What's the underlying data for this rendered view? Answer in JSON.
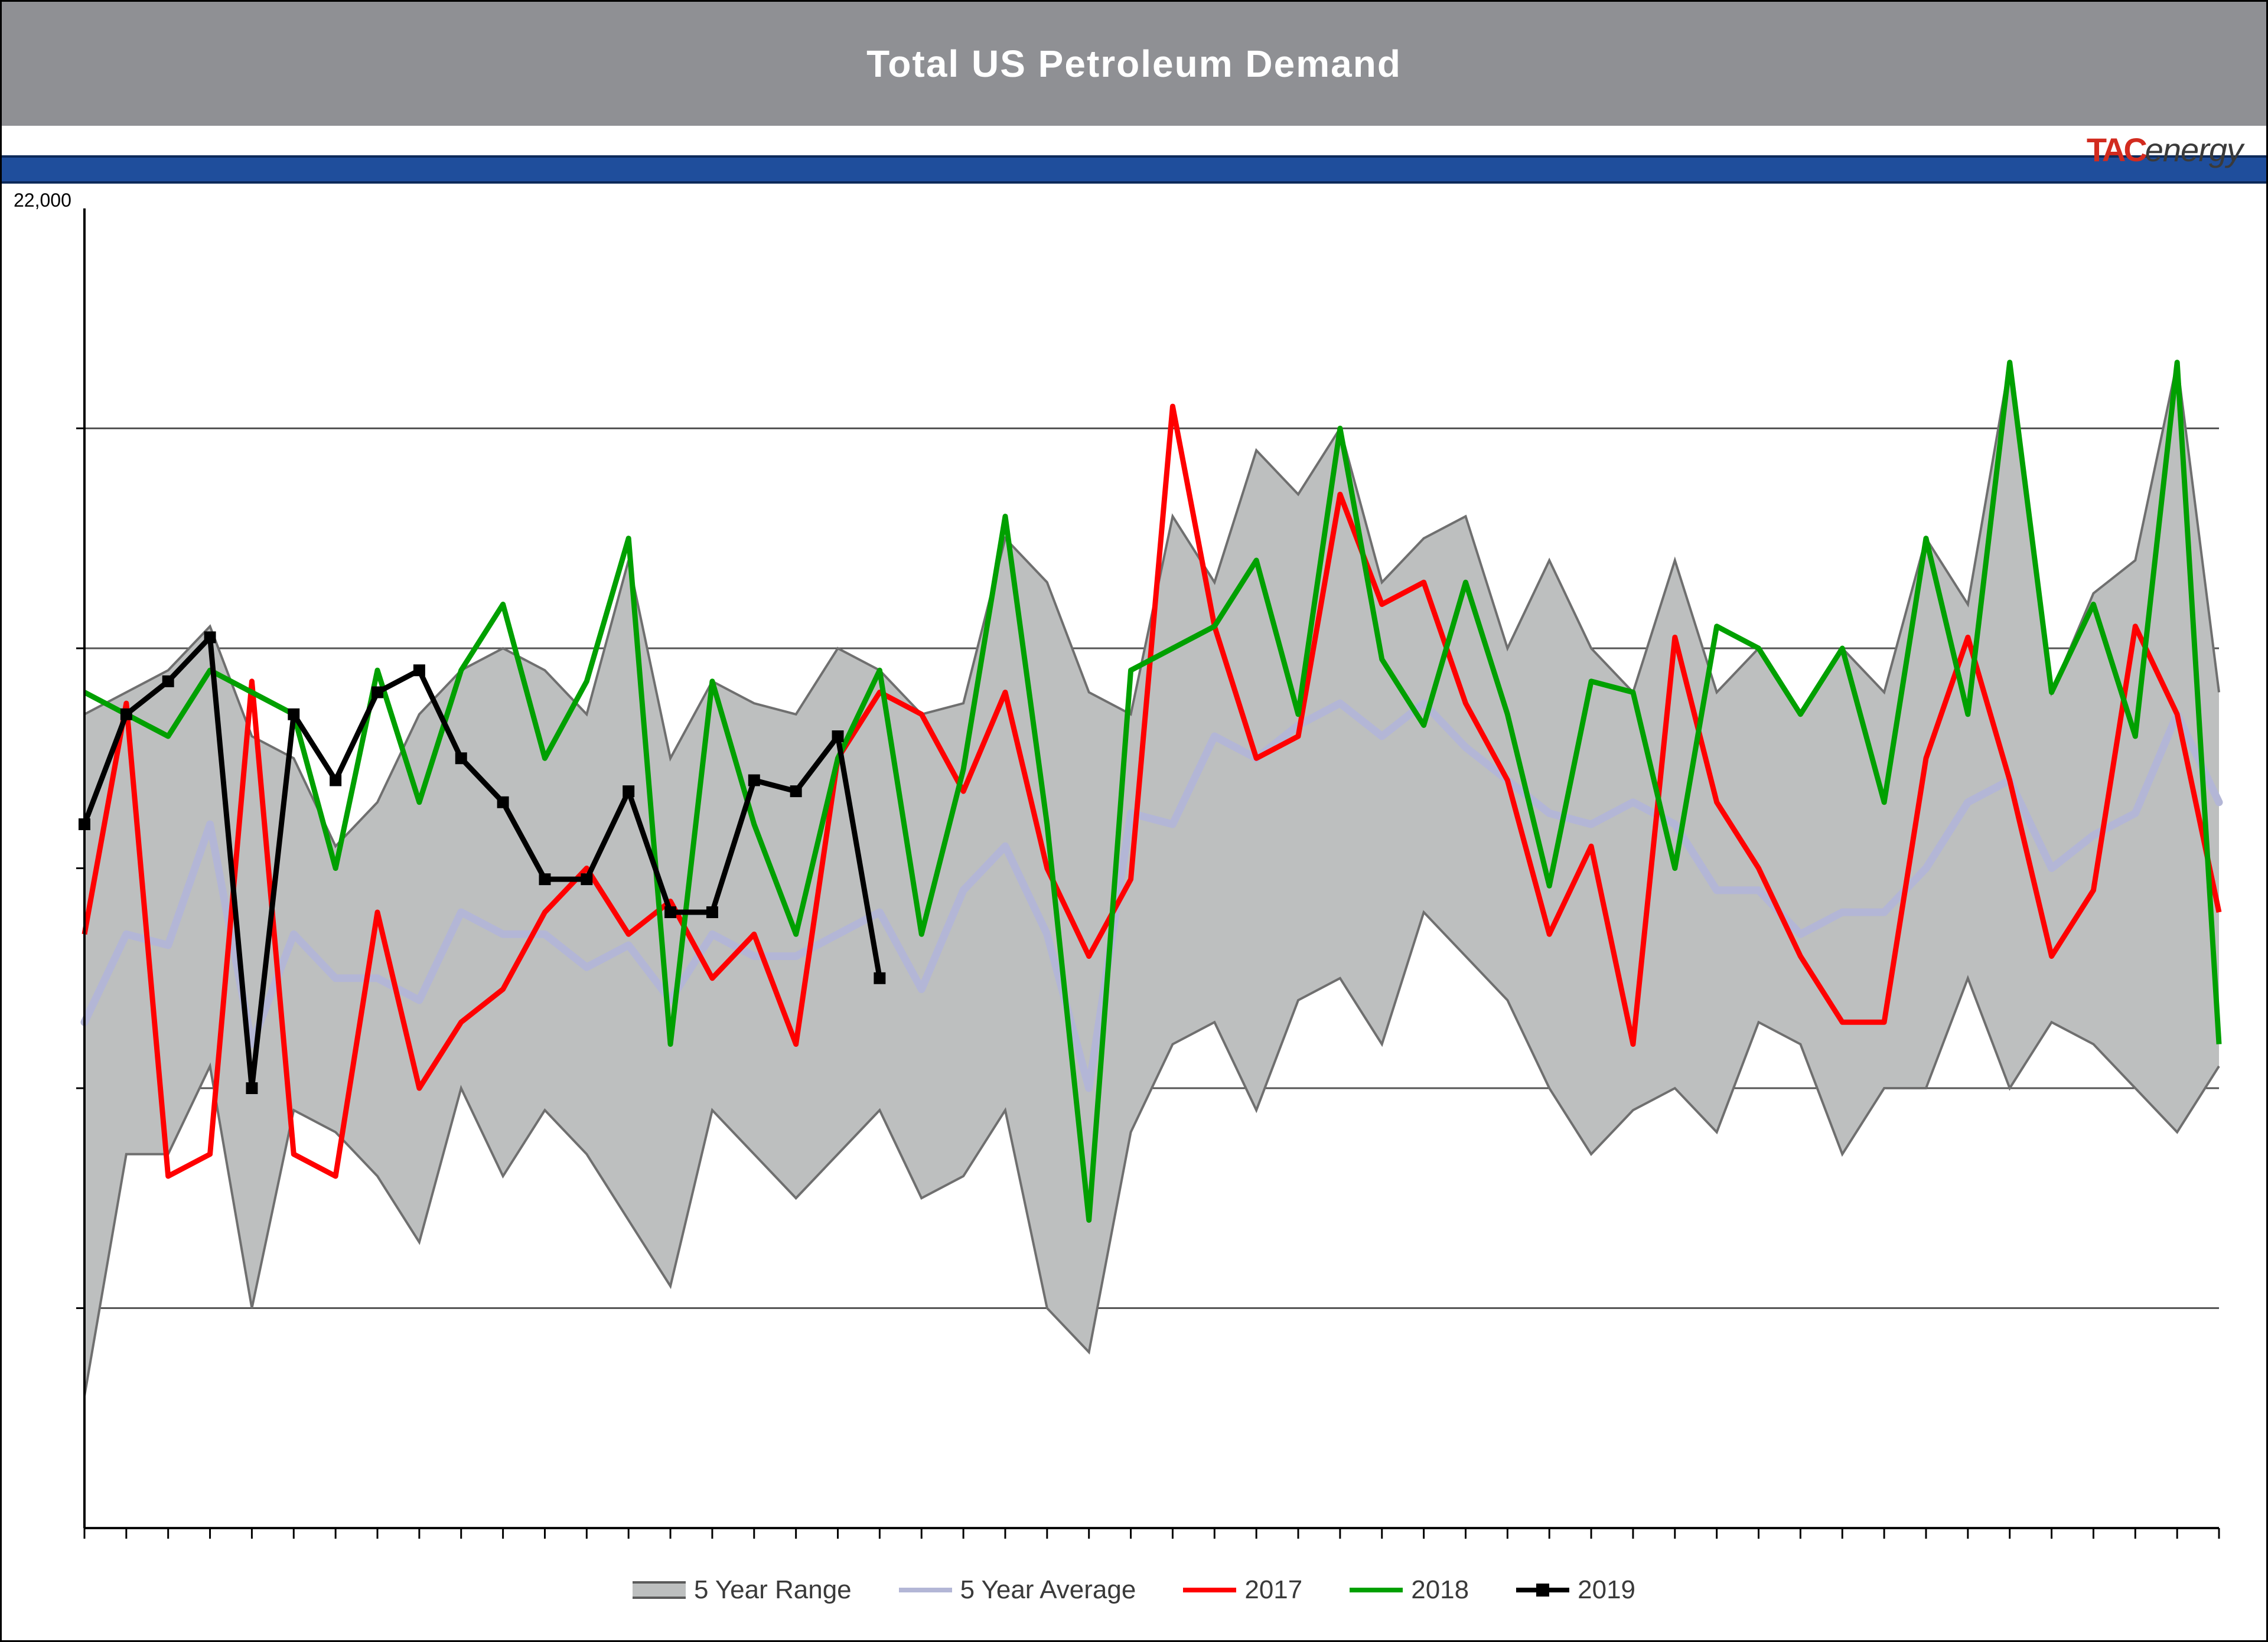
{
  "title": "Total US Petroleum Demand",
  "logo_tac": "TAC",
  "logo_energy": "energy",
  "y_top_label": "22,000",
  "legend": {
    "range": "5 Year Range",
    "avg": "5 Year Average",
    "s2017": "2017",
    "s2018": "2018",
    "s2019": "2019"
  },
  "chart": {
    "type": "line",
    "background_color": "#ffffff",
    "plot_border_color": "#000000",
    "grid_color": "#555555",
    "grid_dash": "solid",
    "ylim": [
      17000,
      23000
    ],
    "y_gridlines": [
      18000,
      19000,
      20000,
      21000,
      22000
    ],
    "x_count": 52,
    "line_width": 9,
    "marker_size": 20,
    "range_fill": "#bdbfbf",
    "range_edge": "#6f6f6f",
    "colors": {
      "avg": "#b3b6d6",
      "y2017": "#ff0000",
      "y2018": "#00a000",
      "y2019": "#000000"
    },
    "range_high": [
      20700,
      20800,
      20900,
      21100,
      20600,
      20500,
      20100,
      20300,
      20700,
      20900,
      21000,
      20900,
      20700,
      21400,
      20500,
      20850,
      20750,
      20700,
      21000,
      20900,
      20700,
      20750,
      21500,
      21300,
      20800,
      20700,
      21600,
      21300,
      21900,
      21700,
      22000,
      21300,
      21500,
      21600,
      21000,
      21400,
      21000,
      20800,
      21400,
      20800,
      21000,
      20700,
      21000,
      20800,
      21500,
      21200,
      22300,
      20800,
      21250,
      21400,
      22300,
      20800
    ],
    "range_low": [
      17600,
      18700,
      18700,
      19100,
      18000,
      18900,
      18800,
      18600,
      18300,
      19000,
      18600,
      18900,
      18700,
      18400,
      18100,
      18900,
      18700,
      18500,
      18700,
      18900,
      18500,
      18600,
      18900,
      18000,
      17800,
      18800,
      19200,
      19300,
      18900,
      19400,
      19500,
      19200,
      19800,
      19600,
      19400,
      19000,
      18700,
      18900,
      19000,
      18800,
      19300,
      19200,
      18700,
      19000,
      19000,
      19500,
      19000,
      19300,
      19200,
      19000,
      18800,
      19100
    ],
    "avg": [
      19300,
      19700,
      19650,
      20200,
      19200,
      19700,
      19500,
      19500,
      19400,
      19800,
      19700,
      19700,
      19550,
      19650,
      19400,
      19700,
      19600,
      19600,
      19700,
      19800,
      19450,
      19900,
      20100,
      19700,
      19000,
      20250,
      20200,
      20600,
      20500,
      20650,
      20750,
      20600,
      20750,
      20550,
      20400,
      20250,
      20200,
      20300,
      20200,
      19900,
      19900,
      19700,
      19800,
      19800,
      20000,
      20300,
      20400,
      20000,
      20150,
      20250,
      20700,
      20300
    ],
    "y2017": [
      19700,
      20750,
      18600,
      18700,
      20850,
      18700,
      18600,
      19800,
      19000,
      19300,
      19450,
      19800,
      20000,
      19700,
      19850,
      19500,
      19700,
      19200,
      20500,
      20800,
      20700,
      20350,
      20800,
      20000,
      19600,
      19950,
      22100,
      21100,
      20500,
      20600,
      21700,
      21200,
      21300,
      20750,
      20400,
      19700,
      20100,
      19200,
      21050,
      20300,
      20000,
      19600,
      19300,
      19300,
      20500,
      21050,
      20400,
      19600,
      19900,
      21100,
      20700,
      19800
    ],
    "y2018": [
      20800,
      20700,
      20600,
      20900,
      20800,
      20700,
      20000,
      20900,
      20300,
      20900,
      21200,
      20500,
      20850,
      21500,
      19200,
      20850,
      20200,
      19700,
      20500,
      20900,
      19700,
      20450,
      21600,
      20200,
      18400,
      20900,
      21000,
      21100,
      21400,
      20700,
      22000,
      20950,
      20650,
      21300,
      20700,
      19920,
      20850,
      20800,
      20000,
      21100,
      21000,
      20700,
      21000,
      20300,
      21500,
      20700,
      22300,
      20800,
      21200,
      20600,
      22300,
      19200
    ],
    "y2019": [
      20200,
      20700,
      20850,
      21050,
      19000,
      20700,
      20400,
      20800,
      20900,
      20500,
      20300,
      19950,
      19950,
      20350,
      19800,
      19800,
      20400,
      20350,
      20600,
      19500
    ],
    "legend_order": [
      "range",
      "avg",
      "y2017",
      "y2018",
      "y2019"
    ],
    "title_fontsize": 64,
    "legend_fontsize": 44
  }
}
